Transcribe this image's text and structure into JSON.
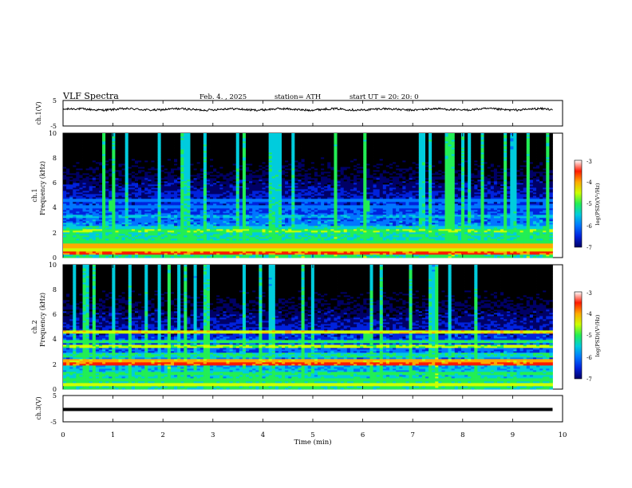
{
  "header": {
    "title": "VLF  Spectra",
    "date": "Feb. 4.  , 2025",
    "station": "station= ATH",
    "start_ut": "start  UT  =    20: 20: 0"
  },
  "colors": {
    "colormap": [
      "#000000",
      "#000066",
      "#0022dd",
      "#0077ff",
      "#00ccdd",
      "#22ee55",
      "#ccff00",
      "#ffaa00",
      "#ff1a00",
      "#ffffff"
    ],
    "trace": "#000000"
  },
  "chart_data": [
    {
      "type": "line",
      "name": "ch1-waveform",
      "ylabel": "ch.1(V)",
      "ylim": [
        -5,
        5
      ],
      "yticks": [
        "5",
        "-5"
      ],
      "x_range_min": [
        0,
        9.8
      ],
      "approx_level_v": 1.5,
      "approx_noise_v": 0.4
    },
    {
      "type": "heatmap",
      "name": "ch1-spectrogram",
      "ylabel_channel": "ch.1",
      "ylabel": "Frequency  (kHz)",
      "ylim": [
        0,
        10
      ],
      "yticks": [
        "0",
        "2",
        "4",
        "6",
        "8",
        "10"
      ],
      "data_x_range_min": [
        0,
        9.8
      ],
      "colorbar": {
        "label": "log(PSD)(V²/Hz)",
        "range": [
          -7,
          -3
        ],
        "ticks": [
          "-3",
          "-4",
          "-5",
          "-6",
          "-7"
        ]
      },
      "sferic_markers_min": [
        0.95,
        6.05
      ],
      "bands_khz": [
        {
          "f": 0.3,
          "level": -3.6
        },
        {
          "f": 0.55,
          "level": -4.4
        },
        {
          "f": 0.9,
          "level": -3.9
        },
        {
          "f": 1.2,
          "level": -4.8
        },
        {
          "f": 1.5,
          "level": -5.0
        },
        {
          "f": 1.8,
          "level": -5.0
        },
        {
          "f": 2.1,
          "level": -4.6
        },
        {
          "f": 2.4,
          "level": -5.1
        },
        {
          "f": 3.3,
          "level": -5.4
        },
        {
          "f": 4.0,
          "level": -5.6
        },
        {
          "f": 4.5,
          "level": -5.7
        }
      ]
    },
    {
      "type": "heatmap",
      "name": "ch2-spectrogram",
      "ylabel_channel": "ch.2",
      "ylabel": "Frequency  (kHz)",
      "ylim": [
        0,
        10
      ],
      "yticks": [
        "0",
        "2",
        "4",
        "6",
        "8",
        "10"
      ],
      "data_x_range_min": [
        0,
        9.8
      ],
      "colorbar": {
        "label": "log(PSD)(V²/Hz)",
        "range": [
          -7,
          -3
        ],
        "ticks": [
          "-3",
          "-4",
          "-5",
          "-6",
          "-7"
        ]
      },
      "sferic_markers_min": [
        0.95,
        6.05
      ],
      "bands_khz": [
        {
          "f": 0.3,
          "level": -4.3
        },
        {
          "f": 0.7,
          "level": -4.8
        },
        {
          "f": 1.2,
          "level": -4.9
        },
        {
          "f": 2.0,
          "level": -3.6
        },
        {
          "f": 2.2,
          "level": -4.0
        },
        {
          "f": 2.7,
          "level": -5.0
        },
        {
          "f": 3.4,
          "level": -4.5
        },
        {
          "f": 3.8,
          "level": -4.9
        },
        {
          "f": 4.6,
          "level": -4.2
        }
      ]
    },
    {
      "type": "line",
      "name": "ch3-waveform",
      "ylabel": "ch.3(V)",
      "xlabel": "Time  (min)",
      "xlim": [
        0,
        10
      ],
      "xticks": [
        "0",
        "1",
        "2",
        "3",
        "4",
        "5",
        "6",
        "7",
        "8",
        "9",
        "10"
      ],
      "ylim": [
        -5,
        5
      ],
      "yticks": [
        "5",
        "-5"
      ],
      "x_range_min": [
        0,
        9.8
      ],
      "approx_level_v": -0.3
    }
  ]
}
